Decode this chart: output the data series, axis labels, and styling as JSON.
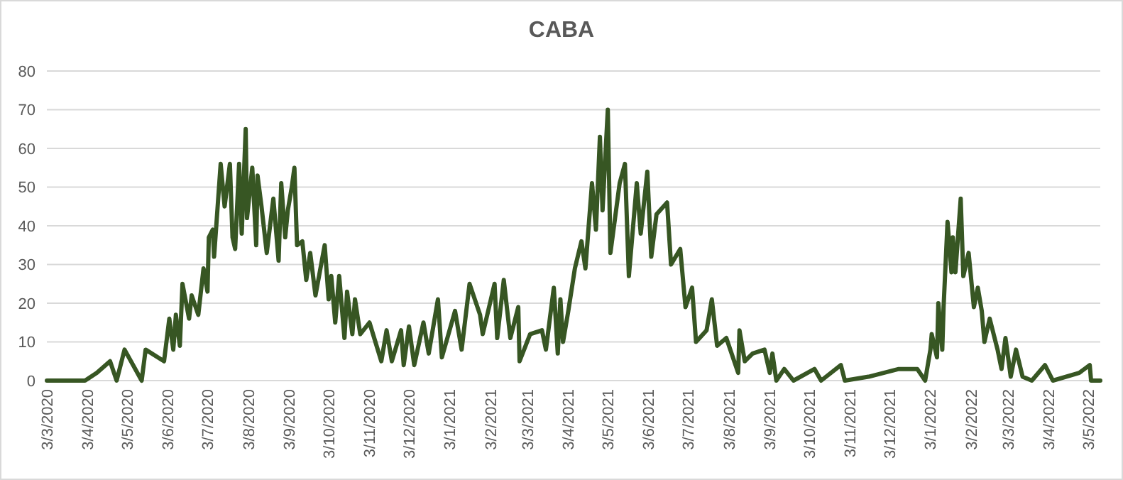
{
  "chart_data": {
    "type": "line",
    "title": "CABA",
    "grid": "y",
    "marker": "none",
    "line_style": "solid",
    "xlim": [
      "2020-03-03",
      "2022-05-12"
    ],
    "ylim": [
      0,
      80
    ],
    "yticks": [
      0,
      10,
      20,
      30,
      40,
      50,
      60,
      70,
      80
    ],
    "xticks": [
      {
        "value": "2020-03-03",
        "label": "3/3/2020"
      },
      {
        "value": "2020-04-03",
        "label": "3/4/2020"
      },
      {
        "value": "2020-05-03",
        "label": "3/5/2020"
      },
      {
        "value": "2020-06-03",
        "label": "3/6/2020"
      },
      {
        "value": "2020-07-03",
        "label": "3/7/2020"
      },
      {
        "value": "2020-08-03",
        "label": "3/8/2020"
      },
      {
        "value": "2020-09-03",
        "label": "3/9/2020"
      },
      {
        "value": "2020-10-03",
        "label": "3/10/2020"
      },
      {
        "value": "2020-11-03",
        "label": "3/11/2020"
      },
      {
        "value": "2020-12-03",
        "label": "3/12/2020"
      },
      {
        "value": "2021-01-03",
        "label": "3/1/2021"
      },
      {
        "value": "2021-02-03",
        "label": "3/2/2021"
      },
      {
        "value": "2021-03-03",
        "label": "3/3/2021"
      },
      {
        "value": "2021-04-03",
        "label": "3/4/2021"
      },
      {
        "value": "2021-05-03",
        "label": "3/5/2021"
      },
      {
        "value": "2021-06-03",
        "label": "3/6/2021"
      },
      {
        "value": "2021-07-03",
        "label": "3/7/2021"
      },
      {
        "value": "2021-08-03",
        "label": "3/8/2021"
      },
      {
        "value": "2021-09-03",
        "label": "3/9/2021"
      },
      {
        "value": "2021-10-03",
        "label": "3/10/2021"
      },
      {
        "value": "2021-11-03",
        "label": "3/11/2021"
      },
      {
        "value": "2021-12-03",
        "label": "3/12/2021"
      },
      {
        "value": "2022-01-03",
        "label": "3/1/2022"
      },
      {
        "value": "2022-02-03",
        "label": "3/2/2022"
      },
      {
        "value": "2022-03-03",
        "label": "3/3/2022"
      },
      {
        "value": "2022-04-03",
        "label": "3/4/2022"
      },
      {
        "value": "2022-05-03",
        "label": "3/5/2022"
      }
    ],
    "x": [
      "2020-03-03",
      "2020-04-01",
      "2020-04-10",
      "2020-04-20",
      "2020-04-25",
      "2020-05-01",
      "2020-05-14",
      "2020-05-17",
      "2020-05-31",
      "2020-06-04",
      "2020-06-07",
      "2020-06-09",
      "2020-06-12",
      "2020-06-14",
      "2020-06-19",
      "2020-06-21",
      "2020-06-26",
      "2020-06-30",
      "2020-07-03",
      "2020-07-04",
      "2020-07-07",
      "2020-07-08",
      "2020-07-13",
      "2020-07-16",
      "2020-07-20",
      "2020-07-22",
      "2020-07-24",
      "2020-07-27",
      "2020-07-29",
      "2020-08-01",
      "2020-08-02",
      "2020-08-06",
      "2020-08-09",
      "2020-08-10",
      "2020-08-13",
      "2020-08-17",
      "2020-08-22",
      "2020-08-26",
      "2020-08-28",
      "2020-08-31",
      "2020-09-02",
      "2020-09-05",
      "2020-09-07",
      "2020-09-09",
      "2020-09-13",
      "2020-09-16",
      "2020-09-19",
      "2020-09-23",
      "2020-09-30",
      "2020-10-03",
      "2020-10-05",
      "2020-10-08",
      "2020-10-11",
      "2020-10-15",
      "2020-10-17",
      "2020-10-21",
      "2020-10-23",
      "2020-10-27",
      "2020-11-03",
      "2020-11-12",
      "2020-11-16",
      "2020-11-20",
      "2020-11-27",
      "2020-11-29",
      "2020-12-03",
      "2020-12-07",
      "2020-12-14",
      "2020-12-18",
      "2020-12-25",
      "2020-12-28",
      "2021-01-07",
      "2021-01-12",
      "2021-01-18",
      "2021-01-26",
      "2021-01-28",
      "2021-02-06",
      "2021-02-08",
      "2021-02-13",
      "2021-02-18",
      "2021-02-24",
      "2021-02-25",
      "2021-03-05",
      "2021-03-14",
      "2021-03-17",
      "2021-03-23",
      "2021-03-26",
      "2021-03-28",
      "2021-03-30",
      "2021-04-03",
      "2021-04-08",
      "2021-04-13",
      "2021-04-16",
      "2021-04-21",
      "2021-04-24",
      "2021-04-27",
      "2021-04-29",
      "2021-05-03",
      "2021-05-05",
      "2021-05-12",
      "2021-05-16",
      "2021-05-19",
      "2021-05-25",
      "2021-05-28",
      "2021-06-02",
      "2021-06-05",
      "2021-06-09",
      "2021-06-17",
      "2021-06-20",
      "2021-06-27",
      "2021-07-01",
      "2021-07-06",
      "2021-07-09",
      "2021-07-17",
      "2021-07-21",
      "2021-07-25",
      "2021-08-01",
      "2021-08-06",
      "2021-08-10",
      "2021-08-11",
      "2021-08-15",
      "2021-08-21",
      "2021-08-30",
      "2021-09-03",
      "2021-09-05",
      "2021-09-08",
      "2021-09-14",
      "2021-09-21",
      "2021-10-07",
      "2021-10-12",
      "2021-10-27",
      "2021-10-30",
      "2021-11-17",
      "2021-12-10",
      "2021-12-24",
      "2021-12-30",
      "2022-01-03",
      "2022-01-04",
      "2022-01-08",
      "2022-01-09",
      "2022-01-12",
      "2022-01-13",
      "2022-01-16",
      "2022-01-19",
      "2022-01-20",
      "2022-01-22",
      "2022-01-26",
      "2022-01-28",
      "2022-02-01",
      "2022-02-05",
      "2022-02-08",
      "2022-02-11",
      "2022-02-13",
      "2022-02-17",
      "2022-02-23",
      "2022-02-26",
      "2022-03-01",
      "2022-03-05",
      "2022-03-09",
      "2022-03-14",
      "2022-03-21",
      "2022-03-31",
      "2022-04-06",
      "2022-04-26",
      "2022-05-04",
      "2022-05-05",
      "2022-05-12"
    ],
    "series": [
      {
        "color": "#375623",
        "values": [
          0,
          0,
          2,
          5,
          0,
          8,
          0,
          8,
          5,
          16,
          8,
          17,
          9,
          25,
          16,
          22,
          17,
          29,
          23,
          37,
          39,
          32,
          56,
          45,
          56,
          37,
          34,
          56,
          38,
          65,
          42,
          55,
          35,
          53,
          45,
          33,
          47,
          31,
          51,
          37,
          44,
          50,
          55,
          35,
          36,
          26,
          33,
          22,
          35,
          21,
          27,
          15,
          27,
          11,
          23,
          12,
          21,
          12,
          15,
          5,
          13,
          5,
          13,
          4,
          14,
          4,
          15,
          7,
          21,
          6,
          18,
          8,
          25,
          17,
          12,
          25,
          11,
          26,
          11,
          19,
          5,
          12,
          13,
          8,
          24,
          7,
          21,
          10,
          18,
          29,
          36,
          29,
          51,
          39,
          63,
          44,
          70,
          33,
          51,
          56,
          27,
          51,
          38,
          54,
          32,
          43,
          46,
          30,
          34,
          19,
          24,
          10,
          13,
          21,
          9,
          11,
          6,
          2,
          13,
          5,
          7,
          8,
          2,
          7,
          0,
          3,
          0,
          3,
          0,
          4,
          0,
          1,
          3,
          3,
          0,
          8,
          12,
          6,
          20,
          8,
          19,
          41,
          28,
          37,
          28,
          47,
          27,
          33,
          19,
          24,
          18,
          10,
          16,
          8,
          3,
          11,
          1,
          8,
          1,
          0,
          4,
          0,
          2,
          4,
          0,
          0
        ]
      }
    ]
  }
}
